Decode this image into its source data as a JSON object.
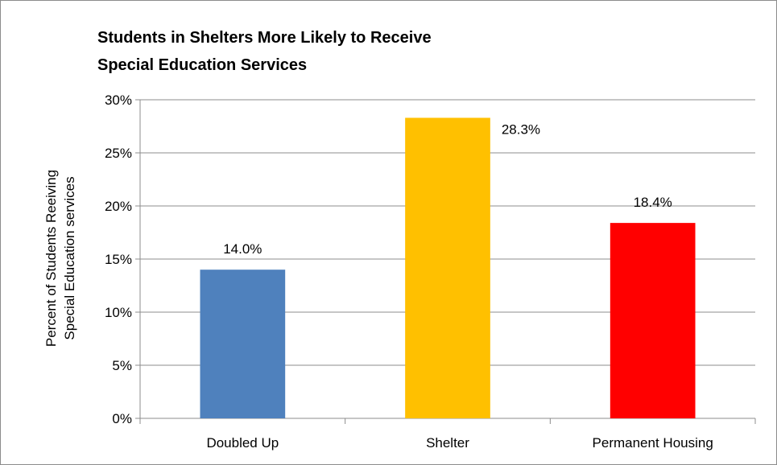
{
  "chart_data": {
    "type": "bar",
    "title_lines": [
      "Students in Shelters More Likely to Receive",
      "Special Education Services"
    ],
    "categories": [
      "Doubled Up",
      "Shelter",
      "Permanent Housing"
    ],
    "values": [
      14.0,
      28.3,
      18.4
    ],
    "value_labels": [
      "14.0%",
      "28.3%",
      "18.4%"
    ],
    "colors": [
      "#4f81bd",
      "#ffc000",
      "#ff0000"
    ],
    "ylabel_lines": [
      "Percent of Students Reeiving",
      "Special Education services"
    ],
    "xlabel": "",
    "ylim": [
      0,
      30
    ],
    "y_ticks": [
      0,
      5,
      10,
      15,
      20,
      25,
      30
    ],
    "y_tick_labels": [
      "0%",
      "5%",
      "10%",
      "15%",
      "20%",
      "25%",
      "30%"
    ],
    "grid": true,
    "legend": "none"
  }
}
